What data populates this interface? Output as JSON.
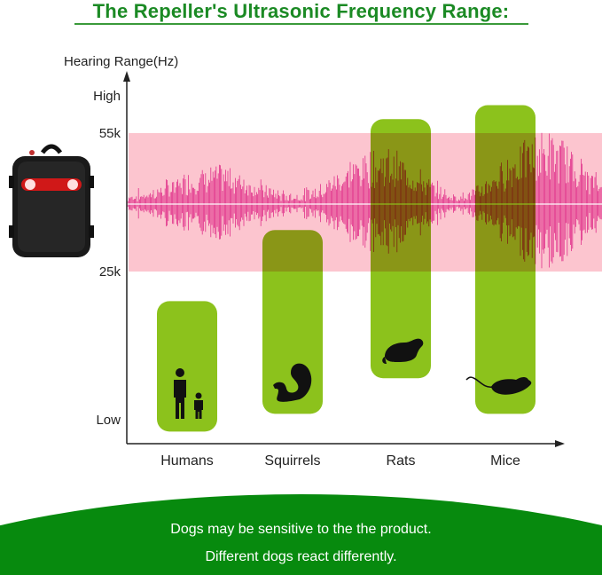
{
  "title": "The Repeller's Ultrasonic Frequency Range:",
  "footer": {
    "line1": "Dogs may be sensitive to the the product.",
    "line2": "Different dogs react differently."
  },
  "colors": {
    "title": "#1b8a24",
    "band": "#fcc5cf",
    "bar": "#8cc21c",
    "wave": "#e0308a",
    "footer": "#078a0e"
  },
  "chart_data": {
    "type": "range-bar",
    "ylabel": "Hearing Range(Hz)",
    "y_ticks": [
      "Low",
      "25k",
      "55k",
      "High"
    ],
    "y_tick_values_khz": [
      0,
      25,
      55,
      63
    ],
    "repeller_band_khz": [
      25,
      55
    ],
    "categories": [
      "Humans",
      "Squirrels",
      "Rats",
      "Mice"
    ],
    "ranges_khz": [
      [
        -2,
        20
      ],
      [
        1,
        34
      ],
      [
        7,
        58
      ],
      [
        1,
        61
      ]
    ],
    "icons": [
      "people-icon",
      "squirrel-icon",
      "rat-icon",
      "mouse-icon"
    ],
    "grid": false
  }
}
